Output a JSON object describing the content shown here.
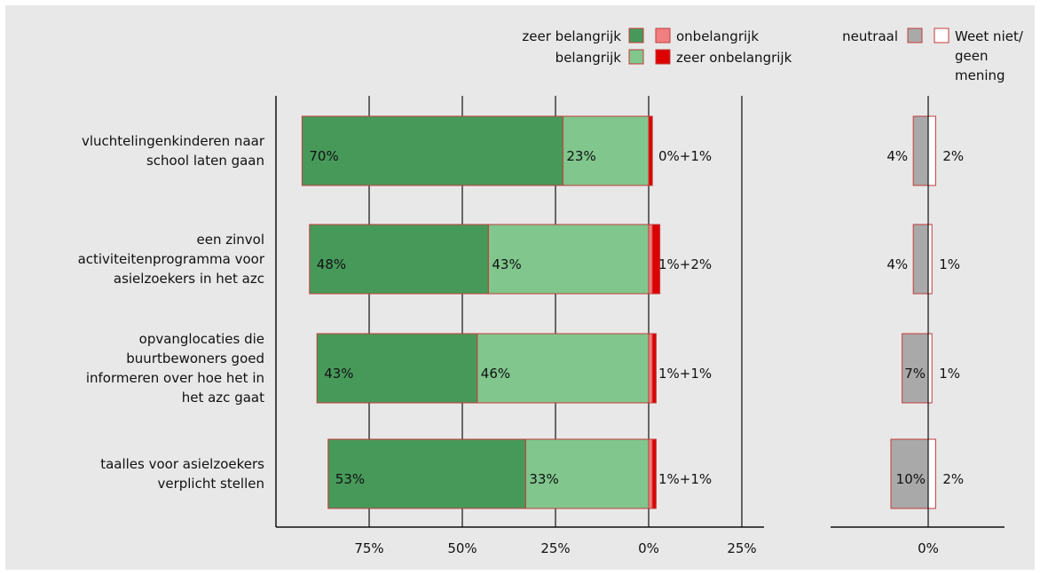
{
  "chart_data": {
    "type": "bar",
    "orientation": "horizontal-diverging",
    "categories": [
      "vluchtelingenkinderen naar school laten gaan",
      "een zinvol activiteitenprogramma voor asielzoekers in het azc",
      "opvanglocaties die buurtbewoners goed informeren over hoe het in het azc gaat",
      "taalles voor asielzoekers verplicht stellen"
    ],
    "category_lines": [
      [
        "vluchtelingenkinderen naar",
        "school laten gaan"
      ],
      [
        "een zinvol",
        "activiteitenprogramma voor",
        "asielzoekers in het azc"
      ],
      [
        "opvanglocaties die",
        "buurtbewoners goed",
        "informeren over hoe het in",
        "het azc gaat"
      ],
      [
        "taalles voor asielzoekers",
        "verplicht stellen"
      ]
    ],
    "series": [
      {
        "name": "zeer belangrijk",
        "values": [
          70,
          48,
          43,
          53
        ],
        "labels": [
          "70%",
          "48%",
          "43%",
          "53%"
        ],
        "color": "#47995a"
      },
      {
        "name": "belangrijk",
        "values": [
          23,
          43,
          46,
          33
        ],
        "labels": [
          "23%",
          "43%",
          "46%",
          "33%"
        ],
        "color": "#80c68d"
      },
      {
        "name": "onbelangrijk",
        "values": [
          0,
          1,
          1,
          1
        ],
        "color": "#f08080"
      },
      {
        "name": "zeer onbelangrijk",
        "values": [
          1,
          2,
          1,
          1
        ],
        "color": "#dd0000"
      },
      {
        "name": "neutraal",
        "values": [
          4,
          4,
          7,
          10
        ],
        "labels": [
          "4%",
          "4%",
          "7%",
          "10%"
        ],
        "color": "#a9a9a9"
      },
      {
        "name": "Weet niet/ geen mening",
        "values": [
          2,
          1,
          1,
          2
        ],
        "labels": [
          "2%",
          "1%",
          "1%",
          "2%"
        ],
        "color": "#ffffff"
      }
    ],
    "negative_labels": [
      "0%+1%",
      "1%+2%",
      "1%+1%",
      "1%+1%"
    ],
    "legend": {
      "items": [
        {
          "label": "zeer belangrijk",
          "color": "#47995a"
        },
        {
          "label": "belangrijk",
          "color": "#80c68d"
        },
        {
          "label": "onbelangrijk",
          "color": "#f08080"
        },
        {
          "label": "zeer onbelangrijk",
          "color": "#dd0000"
        },
        {
          "label": "neutraal",
          "color": "#a9a9a9"
        },
        {
          "label_lines": [
            "Weet niet/",
            "geen",
            "mening"
          ],
          "color": "#ffffff"
        }
      ],
      "placement": "top"
    },
    "main_axis": {
      "ticks": [
        -75,
        -50,
        -25,
        0,
        25
      ],
      "tick_labels": [
        "75%",
        "50%",
        "25%",
        "0%",
        "25%"
      ],
      "range": [
        -100,
        25
      ]
    },
    "side_axis": {
      "ticks": [
        0
      ],
      "tick_labels": [
        "0%"
      ]
    },
    "grid": true,
    "colors": {
      "background": "#e8e8e8",
      "outline": "#c43b3b",
      "gridline": "#111111"
    }
  }
}
